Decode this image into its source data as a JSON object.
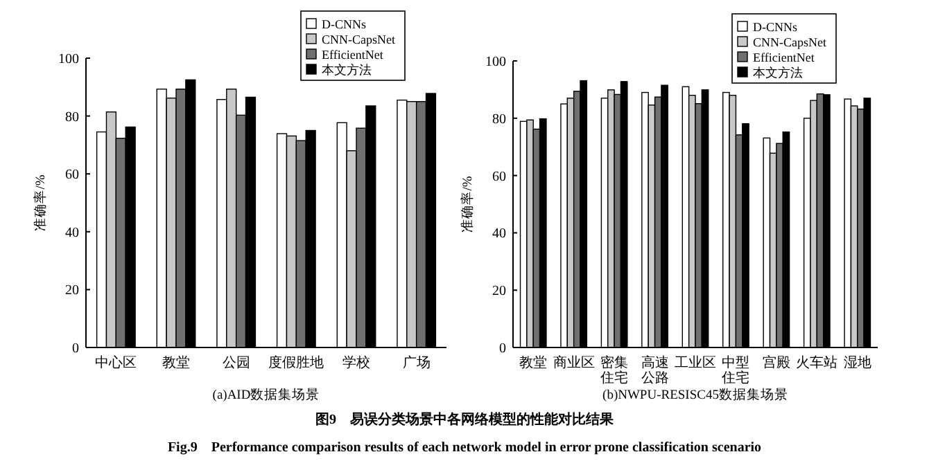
{
  "chart_data": [
    {
      "type": "bar",
      "xlabel": "(a)AID数据集场景",
      "ylabel": "准确率/%",
      "categories": [
        "中心区",
        "教堂",
        "公园",
        "度假胜地",
        "学校",
        "广场"
      ],
      "ylim": [
        0,
        100
      ],
      "yticks": [
        0,
        20,
        40,
        60,
        80,
        100
      ],
      "grid": false,
      "legend": "top right",
      "series": [
        {
          "name": "D-CNNs",
          "color": "#ffffff",
          "values": [
            74.5,
            89.3,
            85.7,
            73.9,
            77.7,
            85.5
          ]
        },
        {
          "name": "CNN-CapsNet",
          "color": "#c8c8c8",
          "values": [
            81.4,
            86.2,
            89.3,
            73.1,
            68,
            85
          ]
        },
        {
          "name": "EfficientNet",
          "color": "#707070",
          "values": [
            72.3,
            89.3,
            80.3,
            71.5,
            75.8,
            85
          ]
        },
        {
          "name": "本文方法",
          "color": "#000000",
          "values": [
            76.2,
            92.5,
            86.5,
            75,
            83.5,
            87.8
          ]
        }
      ]
    },
    {
      "type": "bar",
      "xlabel": "(b)NWPU-RESISC45数据集场景",
      "ylabel": "准确率/%",
      "categories": [
        "教堂",
        "商业区",
        "密集住宅",
        "高速公路",
        "工业区",
        "中型住宅",
        "宫殿",
        "火车站",
        "湿地"
      ],
      "ylim": [
        0,
        100
      ],
      "yticks": [
        0,
        20,
        40,
        60,
        80,
        100
      ],
      "grid": false,
      "legend": "top right",
      "series": [
        {
          "name": "D-CNNs",
          "color": "#ffffff",
          "values": [
            78.9,
            85,
            87,
            89,
            91,
            89,
            73.1,
            80,
            86.7
          ]
        },
        {
          "name": "CNN-CapsNet",
          "color": "#c8c8c8",
          "values": [
            79.4,
            87,
            89.9,
            84.6,
            88,
            88,
            67.8,
            86.2,
            84.3
          ]
        },
        {
          "name": "EfficientNet",
          "color": "#707070",
          "values": [
            76.2,
            89.4,
            88.3,
            87.4,
            85.1,
            74.2,
            71.2,
            88.5,
            83.2
          ]
        },
        {
          "name": "本文方法",
          "color": "#000000",
          "values": [
            79.8,
            93.1,
            92.8,
            91.5,
            89.9,
            78.1,
            75.2,
            88.2,
            87
          ]
        }
      ],
      "annotations": [
        "图9　易误分类场景中各网络模型的性能对比结果",
        "Fig.9　Performance comparison results of each network model in error prone classification scenario"
      ]
    }
  ]
}
